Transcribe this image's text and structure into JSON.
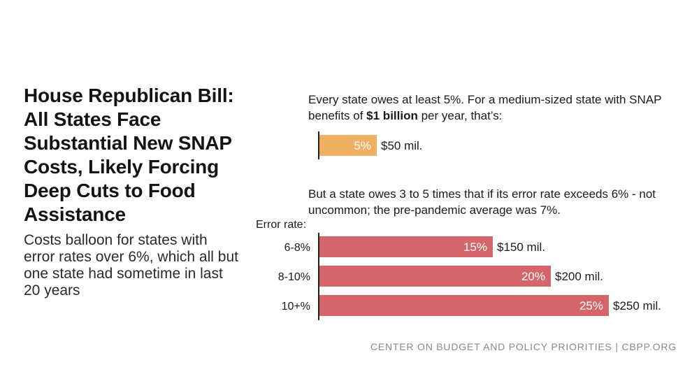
{
  "title": "House Republican Bill: All States Face Substantial New SNAP Costs, Likely Forcing Deep Cuts to Food Assistance",
  "subtitle": "Costs balloon for states with error rates over 6%, which all but one state had sometime in last 20 years",
  "note1": {
    "pre": "Every state owes at least 5%. For a medium-sized state with SNAP benefits of ",
    "bold": "$1 billion",
    "post": " per year, that’s:"
  },
  "note2": "But a state owes 3 to 5 times that if its error rate exceeds 6% - not uncommon; the pre-pandemic average was 7%.",
  "error_rate_label": "Error rate:",
  "footer": "CENTER ON BUDGET AND POLICY PRIORITIES | CBPP.ORG",
  "colors": {
    "baseline_bar": "#f0b061",
    "error_bars": "#d4666b",
    "axis": "#222222",
    "label_on_bar": "#ffffff"
  },
  "chart_data": [
    {
      "type": "bar",
      "orientation": "horizontal",
      "title": "Every state owes at least 5%. For a medium-sized state with SNAP benefits of $1 billion per year, that’s:",
      "categories": [
        ""
      ],
      "values": [
        5
      ],
      "bar_labels": [
        "5%"
      ],
      "value_labels": [
        "$50 mil."
      ],
      "xlim": [
        0,
        25
      ]
    },
    {
      "type": "bar",
      "orientation": "horizontal",
      "title": "But a state owes 3 to 5 times that if its error rate exceeds 6% - not uncommon; the pre-pandemic average was 7%.",
      "ylabel": "Error rate:",
      "categories": [
        "6-8%",
        "8-10%",
        "10+%"
      ],
      "values": [
        15,
        20,
        25
      ],
      "bar_labels": [
        "15%",
        "20%",
        "25%"
      ],
      "value_labels": [
        "$150 mil.",
        "$200 mil.",
        "$250 mil."
      ],
      "xlim": [
        0,
        25
      ]
    }
  ]
}
